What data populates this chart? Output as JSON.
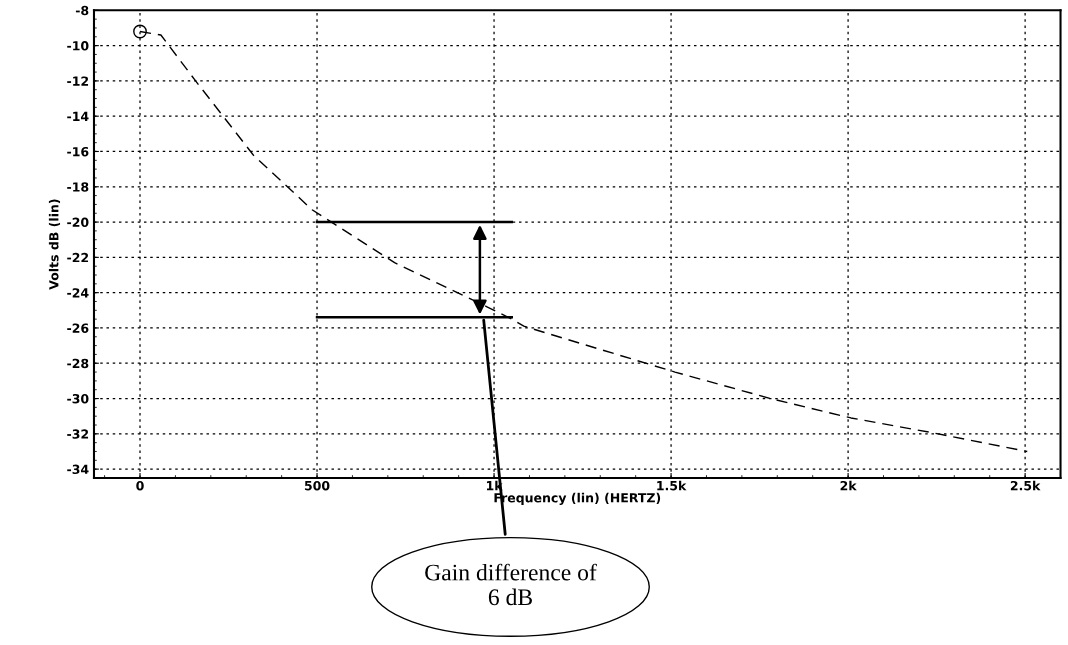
{
  "chart_data": {
    "type": "line",
    "xlabel": "Frequency (lin) (HERTZ)",
    "ylabel": "Volts dB (lin)",
    "xlim": [
      -130,
      2600
    ],
    "ylim": [
      -34.5,
      -8
    ],
    "xticks": [
      0,
      500,
      {
        "value": 1000,
        "label": "1k"
      },
      {
        "value": 1500,
        "label": "1.5k"
      },
      {
        "value": 2000,
        "label": "2k"
      },
      {
        "value": 2500,
        "label": "2.5k"
      }
    ],
    "yticks": [
      -34,
      -32,
      -30,
      -28,
      -26,
      -24,
      -22,
      -20,
      -18,
      -16,
      -14,
      -12,
      -10,
      -8
    ],
    "grid": true,
    "series": [
      {
        "color": "#000000",
        "line_style": "dashed",
        "marker": "none",
        "x": [
          0,
          59,
          157,
          320,
          486,
          719,
          980,
          1050,
          1084,
          1511,
          1781,
          2008,
          2228,
          2506
        ],
        "values": [
          -9.2,
          -9.4,
          -12.0,
          -16.2,
          -19.3,
          -22.3,
          -24.8,
          -25.5,
          -25.9,
          -28.5,
          -30.0,
          -31.1,
          -31.9,
          -33.0
        ]
      },
      {
        "type": "scatter",
        "color": "#000000",
        "marker": "circle",
        "x": [
          0
        ],
        "values": [
          -9.2
        ]
      },
      {
        "color": "#000000",
        "line_style": "solid",
        "marker": "none",
        "x": [
          500,
          1050
        ],
        "values": [
          -20,
          -20
        ]
      },
      {
        "color": "#000000",
        "line_style": "solid",
        "marker": "none",
        "x": [
          500,
          1050
        ],
        "values": [
          -25.4,
          -25.4
        ]
      }
    ],
    "annotations": [
      {
        "text": "Gain difference of\n6 dB",
        "x": 970,
        "y": -25.4
      }
    ]
  }
}
